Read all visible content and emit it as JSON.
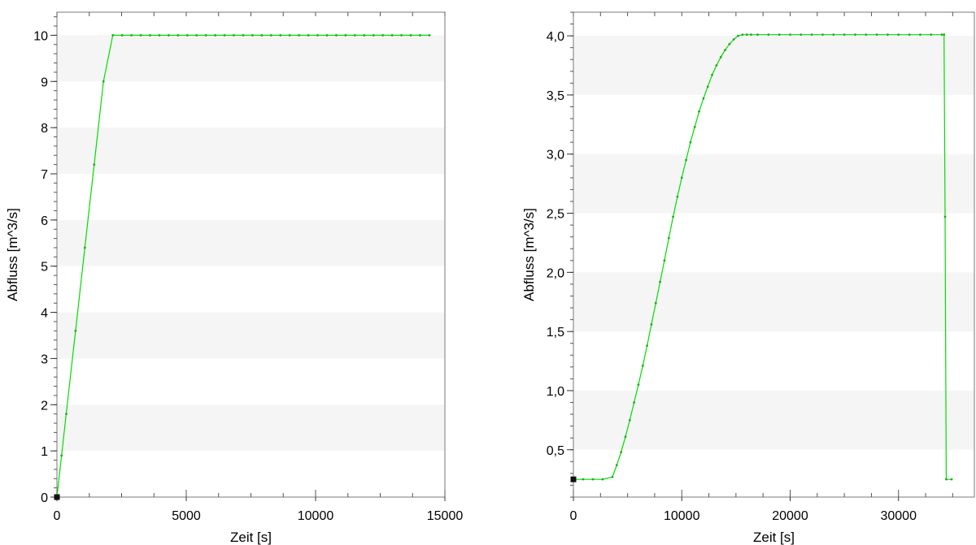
{
  "chart_data": [
    {
      "type": "line",
      "xlabel": "Zeit [s]",
      "ylabel": "Abfluss [m^3/s]",
      "xlim": [
        0,
        15000
      ],
      "ylim": [
        0,
        10.5
      ],
      "xticks": [
        0,
        5000,
        10000,
        15000
      ],
      "xtick_labels": [
        "0",
        "5000",
        "10000",
        "15000"
      ],
      "yticks": [
        0,
        1,
        2,
        3,
        4,
        5,
        6,
        7,
        8,
        9,
        10
      ],
      "ytick_labels": [
        "0",
        "1",
        "2",
        "3",
        "4",
        "5",
        "6",
        "7",
        "8",
        "9",
        "10"
      ],
      "band_step": 1,
      "grid": false,
      "series_color": "#00dd00",
      "series": [
        {
          "x": [
            0,
            180,
            360,
            720,
            1080,
            1440,
            1800,
            2160,
            2520,
            2880,
            3240,
            3600,
            3960,
            4320,
            4680,
            5040,
            5400,
            5760,
            6120,
            6480,
            6840,
            7200,
            7560,
            7920,
            8280,
            8640,
            9000,
            9360,
            9720,
            10080,
            10440,
            10800,
            11160,
            11520,
            11880,
            12240,
            12600,
            12960,
            13320,
            13680,
            14040,
            14400
          ],
          "y": [
            0,
            0.9,
            1.8,
            3.6,
            5.4,
            7.2,
            9.0,
            10,
            10,
            10,
            10,
            10,
            10,
            10,
            10,
            10,
            10,
            10,
            10,
            10,
            10,
            10,
            10,
            10,
            10,
            10,
            10,
            10,
            10,
            10,
            10,
            10,
            10,
            10,
            10,
            10,
            10,
            10,
            10,
            10,
            10,
            10
          ]
        }
      ]
    },
    {
      "type": "line",
      "xlabel": "Zeit [s]",
      "ylabel": "Abfluss [m^3/s]",
      "xlim": [
        0,
        37000
      ],
      "ylim": [
        0.1,
        4.2
      ],
      "xticks": [
        0,
        10000,
        20000,
        30000
      ],
      "xtick_labels": [
        "0",
        "10000",
        "20000",
        "30000"
      ],
      "yticks": [
        0.5,
        1.0,
        1.5,
        2.0,
        2.5,
        3.0,
        3.5,
        4.0
      ],
      "ytick_labels": [
        "0,5",
        "1,0",
        "1,5",
        "2,0",
        "2,5",
        "3,0",
        "3,5",
        "4,0"
      ],
      "band_step": 0.5,
      "grid": false,
      "series_color": "#00dd00",
      "series": [
        {
          "x": [
            0,
            900,
            1800,
            2700,
            3600,
            4000,
            4400,
            4800,
            5200,
            5600,
            6000,
            6400,
            6800,
            7200,
            7600,
            8000,
            8400,
            8800,
            9200,
            9600,
            10000,
            10400,
            10800,
            11200,
            11600,
            12000,
            12400,
            12800,
            13200,
            13600,
            14000,
            14400,
            14800,
            15200,
            15600,
            16000,
            16400,
            17000,
            18000,
            19000,
            20000,
            21000,
            22000,
            23000,
            24000,
            25000,
            26000,
            27000,
            28000,
            29000,
            30000,
            31000,
            32000,
            33000,
            34000,
            34200,
            34300,
            34400,
            34900
          ],
          "y": [
            0.25,
            0.25,
            0.25,
            0.25,
            0.27,
            0.37,
            0.48,
            0.61,
            0.75,
            0.9,
            1.05,
            1.21,
            1.38,
            1.56,
            1.74,
            1.92,
            2.1,
            2.29,
            2.47,
            2.64,
            2.8,
            2.95,
            3.1,
            3.23,
            3.36,
            3.47,
            3.57,
            3.67,
            3.75,
            3.82,
            3.88,
            3.93,
            3.97,
            4.0,
            4.01,
            4.01,
            4.01,
            4.01,
            4.01,
            4.01,
            4.01,
            4.01,
            4.01,
            4.01,
            4.01,
            4.01,
            4.01,
            4.01,
            4.01,
            4.01,
            4.01,
            4.01,
            4.01,
            4.01,
            4.01,
            4.01,
            2.47,
            0.25,
            0.25
          ]
        }
      ]
    }
  ]
}
